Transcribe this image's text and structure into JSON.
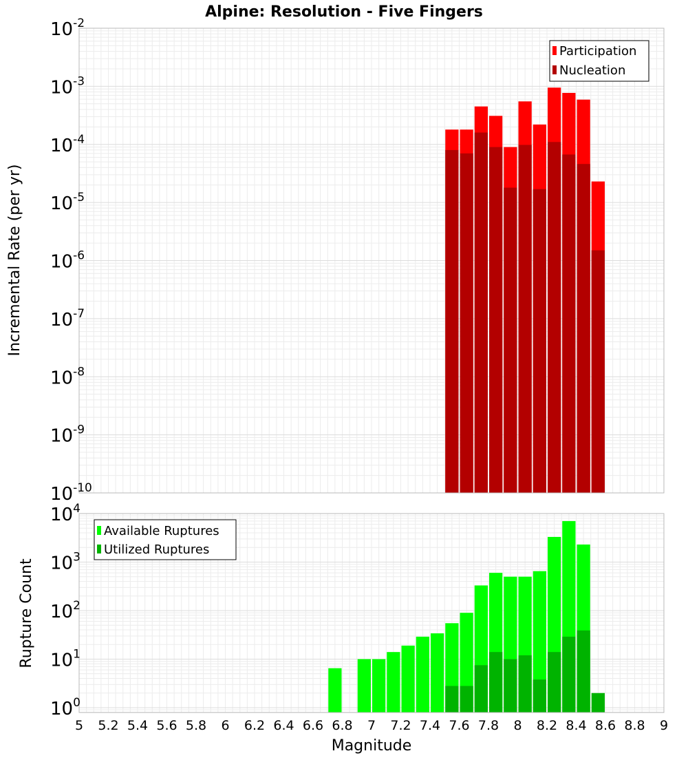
{
  "title": "Alpine: Resolution - Five Fingers",
  "chart_data": [
    {
      "type": "bar",
      "scale": "log",
      "ylabel": "Incremental Rate (per yr)",
      "ylim_exp": [
        -10,
        -2
      ],
      "yticks_exp": [
        -10,
        -9,
        -8,
        -7,
        -6,
        -5,
        -4,
        -3,
        -2
      ],
      "grid": true,
      "legend_position": "top-right",
      "bin_width": 0.1,
      "x": [
        7.55,
        7.65,
        7.75,
        7.85,
        7.95,
        8.05,
        8.15,
        8.25,
        8.35,
        8.45,
        8.55
      ],
      "series": [
        {
          "name": "Participation",
          "color": "#ff0000",
          "values": [
            0.00018,
            0.00018,
            0.00045,
            0.00031,
            9e-05,
            0.00055,
            0.00022,
            0.00095,
            0.00077,
            0.00059,
            2.3e-05
          ]
        },
        {
          "name": "Nucleation",
          "color": "#b30000",
          "values": [
            8e-05,
            7e-05,
            0.00016,
            9e-05,
            1.8e-05,
            9.8e-05,
            1.7e-05,
            0.00011,
            6.7e-05,
            4.6e-05,
            1.5e-06
          ]
        }
      ]
    },
    {
      "type": "bar",
      "scale": "log",
      "ylabel": "Rupture Count",
      "xlabel": "Magnitude",
      "ylim_exp": [
        -0.1,
        4
      ],
      "yticks_exp": [
        0,
        1,
        2,
        3,
        4
      ],
      "xlim": [
        5,
        9
      ],
      "xticks": [
        "5",
        "5.2",
        "5.4",
        "5.6",
        "5.8",
        "6",
        "6.2",
        "6.4",
        "6.6",
        "6.8",
        "7",
        "7.2",
        "7.4",
        "7.6",
        "7.8",
        "8",
        "8.2",
        "8.4",
        "8.6",
        "8.8",
        "9"
      ],
      "grid": true,
      "legend_position": "top-left",
      "bin_width": 0.1,
      "series": [
        {
          "name": "Available Ruptures",
          "color": "#00ff00",
          "points": [
            [
              6.75,
              6.5
            ],
            [
              6.95,
              10
            ],
            [
              7.05,
              10
            ],
            [
              7.15,
              14
            ],
            [
              7.25,
              19
            ],
            [
              7.35,
              29
            ],
            [
              7.45,
              34
            ],
            [
              7.55,
              55
            ],
            [
              7.65,
              90
            ],
            [
              7.75,
              330
            ],
            [
              7.85,
              600
            ],
            [
              7.95,
              500
            ],
            [
              8.05,
              500
            ],
            [
              8.15,
              650
            ],
            [
              8.25,
              3300
            ],
            [
              8.35,
              7000
            ],
            [
              8.45,
              2300
            ]
          ]
        },
        {
          "name": "Utilized Ruptures",
          "color": "#00b300",
          "points": [
            [
              7.55,
              2.8
            ],
            [
              7.65,
              2.8
            ],
            [
              7.75,
              7.5
            ],
            [
              7.85,
              14
            ],
            [
              7.95,
              10
            ],
            [
              8.05,
              12
            ],
            [
              8.15,
              3.8
            ],
            [
              8.25,
              14
            ],
            [
              8.35,
              29
            ],
            [
              8.45,
              39
            ],
            [
              8.55,
              2
            ]
          ]
        }
      ]
    }
  ]
}
